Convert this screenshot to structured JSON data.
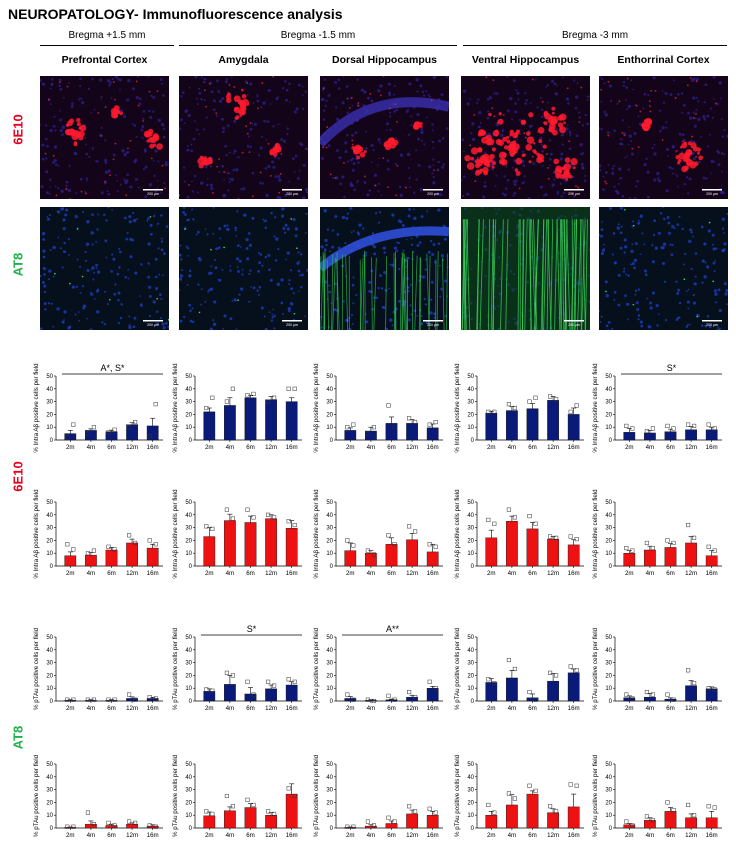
{
  "title": "NEUROPATOLOGY- Immunofluorescence analysis",
  "bregmas": [
    "Bregma +1.5 mm",
    "Bregma -1.5 mm",
    "Bregma -3 mm"
  ],
  "regions": [
    "Prefrontal Cortex",
    "Amygdala",
    "Dorsal Hippocampus",
    "Ventral Hippocampus",
    "Enthorrinal Cortex"
  ],
  "row_labels": {
    "e10": "6E10",
    "at8": "AT8"
  },
  "colors": {
    "e10": "#e8001c",
    "at8": "#1fb24a",
    "navy": "#0a1a78",
    "red": "#ee1111"
  },
  "micro_scale_label": "200 µm",
  "chart_data": [
    {
      "id": "c00",
      "type": "bar",
      "ylabel": "% Intra Aβ positive cells per field",
      "categories": [
        "2m",
        "4m",
        "6m",
        "12m",
        "16m"
      ],
      "ylim": [
        0,
        50
      ],
      "yticks": [
        0,
        10,
        20,
        30,
        40,
        50
      ],
      "color": "navy",
      "values": [
        5,
        7.5,
        6.5,
        12,
        11
      ],
      "errors": [
        2.5,
        1.2,
        1.2,
        1.5,
        6
      ],
      "points": [
        [
          2,
          12
        ],
        [
          5,
          10
        ],
        [
          6,
          8
        ],
        [
          10,
          14
        ],
        [
          3,
          28
        ]
      ],
      "annotation": "A*, S*"
    },
    {
      "id": "c01",
      "type": "bar",
      "ylabel": "% Intra Aβ positive cells per field",
      "categories": [
        "2m",
        "4m",
        "6m",
        "12m",
        "16m"
      ],
      "ylim": [
        0,
        50
      ],
      "yticks": [
        0,
        10,
        20,
        30,
        40,
        50
      ],
      "color": "navy",
      "values": [
        22,
        27,
        33,
        31.5,
        30
      ],
      "errors": [
        3,
        6,
        2,
        2.5,
        3
      ],
      "points": [
        [
          25,
          33
        ],
        [
          30,
          40
        ],
        [
          35,
          36
        ],
        [
          30,
          33
        ],
        [
          40,
          40
        ]
      ],
      "annotation": ""
    },
    {
      "id": "c02",
      "type": "bar",
      "ylabel": "% Intra Aβ positive cells per field",
      "categories": [
        "2m",
        "4m",
        "6m",
        "12m",
        "16m"
      ],
      "ylim": [
        0,
        50
      ],
      "yticks": [
        0,
        10,
        20,
        30,
        40,
        50
      ],
      "color": "navy",
      "values": [
        7.5,
        7,
        13,
        13,
        9.5
      ],
      "errors": [
        2,
        3,
        5,
        3,
        3
      ],
      "points": [
        [
          10,
          12
        ],
        [
          5,
          10
        ],
        [
          27,
          10
        ],
        [
          17,
          14
        ],
        [
          12,
          14
        ]
      ],
      "annotation": ""
    },
    {
      "id": "c03",
      "type": "bar",
      "ylabel": "% Intra Aβ positive cells per field",
      "categories": [
        "2m",
        "4m",
        "6m",
        "12m",
        "16m"
      ],
      "ylim": [
        0,
        50
      ],
      "yticks": [
        0,
        10,
        20,
        30,
        40,
        50
      ],
      "color": "navy",
      "values": [
        21,
        23,
        24.5,
        31,
        20
      ],
      "errors": [
        1.5,
        3,
        4,
        3,
        5
      ],
      "points": [
        [
          22,
          22
        ],
        [
          28,
          25
        ],
        [
          30,
          33
        ],
        [
          34,
          32
        ],
        [
          22,
          27
        ]
      ],
      "annotation": ""
    },
    {
      "id": "c04",
      "type": "bar",
      "ylabel": "% Intra Aβ positive cells per field",
      "categories": [
        "2m",
        "4m",
        "6m",
        "12m",
        "16m"
      ],
      "ylim": [
        0,
        50
      ],
      "yticks": [
        0,
        10,
        20,
        30,
        40,
        50
      ],
      "color": "navy",
      "values": [
        6,
        5.5,
        6.5,
        8,
        8
      ],
      "errors": [
        3,
        2,
        2,
        2.5,
        2
      ],
      "points": [
        [
          11,
          9
        ],
        [
          7,
          9
        ],
        [
          11,
          9
        ],
        [
          12,
          11
        ],
        [
          12,
          9
        ]
      ],
      "annotation": "S*"
    },
    {
      "id": "c10",
      "type": "bar",
      "ylabel": "% Intra Aβ positive cells per field",
      "categories": [
        "2m",
        "4m",
        "6m",
        "12m",
        "16m"
      ],
      "ylim": [
        0,
        50
      ],
      "yticks": [
        0,
        10,
        20,
        30,
        40,
        50
      ],
      "color": "red",
      "values": [
        8,
        8.5,
        12.5,
        18,
        14
      ],
      "errors": [
        3,
        2,
        2,
        3,
        3
      ],
      "points": [
        [
          17,
          13
        ],
        [
          10,
          12
        ],
        [
          15,
          13
        ],
        [
          24,
          18
        ],
        [
          20,
          17
        ]
      ],
      "annotation": ""
    },
    {
      "id": "c11",
      "type": "bar",
      "ylabel": "% Intra Aβ positive cells per field",
      "categories": [
        "2m",
        "4m",
        "6m",
        "12m",
        "16m"
      ],
      "ylim": [
        0,
        50
      ],
      "yticks": [
        0,
        10,
        20,
        30,
        40,
        50
      ],
      "color": "red",
      "values": [
        23,
        35.5,
        34,
        37,
        29.5
      ],
      "errors": [
        7,
        5,
        5,
        3,
        6
      ],
      "points": [
        [
          31,
          29
        ],
        [
          44,
          37
        ],
        [
          44,
          38
        ],
        [
          40,
          38
        ],
        [
          35,
          32
        ]
      ],
      "annotation": ""
    },
    {
      "id": "c12",
      "type": "bar",
      "ylabel": "% Intra Aβ positive cells per field",
      "categories": [
        "2m",
        "4m",
        "6m",
        "12m",
        "16m"
      ],
      "ylim": [
        0,
        50
      ],
      "yticks": [
        0,
        10,
        20,
        30,
        40,
        50
      ],
      "color": "red",
      "values": [
        12,
        10,
        17,
        20.5,
        11
      ],
      "errors": [
        6,
        2,
        5,
        5,
        6
      ],
      "points": [
        [
          20,
          16
        ],
        [
          12,
          9
        ],
        [
          24,
          17
        ],
        [
          31,
          27
        ],
        [
          17,
          15
        ]
      ],
      "annotation": ""
    },
    {
      "id": "c13",
      "type": "bar",
      "ylabel": "% Intra Aβ positive cells per field",
      "categories": [
        "2m",
        "4m",
        "6m",
        "12m",
        "16m"
      ],
      "ylim": [
        0,
        50
      ],
      "yticks": [
        0,
        10,
        20,
        30,
        40,
        50
      ],
      "color": "red",
      "values": [
        22,
        35,
        29,
        21,
        16.5
      ],
      "errors": [
        6,
        4,
        5,
        2,
        4
      ],
      "points": [
        [
          36,
          33
        ],
        [
          44,
          38
        ],
        [
          39,
          33
        ],
        [
          23,
          22
        ],
        [
          23,
          21
        ]
      ],
      "annotation": ""
    },
    {
      "id": "c14",
      "type": "bar",
      "ylabel": "% Intra Aβ positive cells per field",
      "categories": [
        "2m",
        "4m",
        "6m",
        "12m",
        "16m"
      ],
      "ylim": [
        0,
        50
      ],
      "yticks": [
        0,
        10,
        20,
        30,
        40,
        50
      ],
      "color": "red",
      "values": [
        10,
        12.5,
        14.5,
        18,
        8
      ],
      "errors": [
        2,
        3,
        3,
        5,
        4
      ],
      "points": [
        [
          14,
          12
        ],
        [
          18,
          14
        ],
        [
          20,
          18
        ],
        [
          32,
          22
        ],
        [
          15,
          12
        ]
      ],
      "annotation": ""
    },
    {
      "id": "c20",
      "type": "bar",
      "ylabel": "% pTAu positive cells per field",
      "categories": [
        "2m",
        "4m",
        "6m",
        "12m",
        "16m"
      ],
      "ylim": [
        0,
        50
      ],
      "yticks": [
        0,
        10,
        20,
        30,
        40,
        50
      ],
      "color": "navy",
      "values": [
        0.5,
        0.5,
        0.5,
        2,
        2
      ],
      "errors": [
        0.5,
        0.5,
        0.5,
        1.2,
        0.8
      ],
      "points": [
        [
          1,
          1
        ],
        [
          1,
          1
        ],
        [
          1,
          1
        ],
        [
          5,
          1
        ],
        [
          3,
          2
        ]
      ],
      "annotation": ""
    },
    {
      "id": "c21",
      "type": "bar",
      "ylabel": "% pTAu positive cells per field",
      "categories": [
        "2m",
        "4m",
        "6m",
        "12m",
        "16m"
      ],
      "ylim": [
        0,
        50
      ],
      "yticks": [
        0,
        10,
        20,
        30,
        40,
        50
      ],
      "color": "navy",
      "values": [
        7.5,
        13,
        5.5,
        9.5,
        12.5
      ],
      "errors": [
        2,
        7,
        5,
        3,
        2.5
      ],
      "points": [
        [
          9,
          8
        ],
        [
          22,
          20
        ],
        [
          15,
          5
        ],
        [
          15,
          12
        ],
        [
          17,
          15
        ]
      ],
      "annotation": "S*"
    },
    {
      "id": "c22",
      "type": "bar",
      "ylabel": "% pTAu positive cells per field",
      "categories": [
        "2m",
        "4m",
        "6m",
        "12m",
        "16m"
      ],
      "ylim": [
        0,
        50
      ],
      "yticks": [
        0,
        10,
        20,
        30,
        40,
        50
      ],
      "color": "navy",
      "values": [
        2,
        0.5,
        1,
        3,
        10
      ],
      "errors": [
        1.5,
        0.5,
        0.5,
        1.5,
        1.5
      ],
      "points": [
        [
          5,
          1
        ],
        [
          1,
          0
        ],
        [
          4,
          1
        ],
        [
          7,
          3
        ],
        [
          15,
          10
        ]
      ],
      "annotation": "A**"
    },
    {
      "id": "c23",
      "type": "bar",
      "ylabel": "% pTAu positive cells per field",
      "categories": [
        "2m",
        "4m",
        "6m",
        "12m",
        "16m"
      ],
      "ylim": [
        0,
        50
      ],
      "yticks": [
        0,
        10,
        20,
        30,
        40,
        50
      ],
      "color": "navy",
      "values": [
        14.5,
        18,
        2.5,
        15.5,
        22
      ],
      "errors": [
        3,
        6,
        3,
        6,
        3
      ],
      "points": [
        [
          17,
          14
        ],
        [
          32,
          25
        ],
        [
          7,
          1
        ],
        [
          22,
          20
        ],
        [
          27,
          24
        ]
      ],
      "annotation": ""
    },
    {
      "id": "c24",
      "type": "bar",
      "ylabel": "% pTAu positive cells per field",
      "categories": [
        "2m",
        "4m",
        "6m",
        "12m",
        "16m"
      ],
      "ylim": [
        0,
        50
      ],
      "yticks": [
        0,
        10,
        20,
        30,
        40,
        50
      ],
      "color": "navy",
      "values": [
        2.5,
        3,
        1.5,
        12,
        9.5
      ],
      "errors": [
        1.5,
        3,
        1,
        4,
        1.5
      ],
      "points": [
        [
          5,
          2
        ],
        [
          7,
          5
        ],
        [
          5,
          1
        ],
        [
          24,
          14
        ],
        [
          10,
          9
        ]
      ],
      "annotation": ""
    },
    {
      "id": "c30",
      "type": "bar",
      "ylabel": "% pTAu positive cells per field",
      "categories": [
        "2m",
        "4m",
        "6m",
        "12m",
        "16m"
      ],
      "ylim": [
        0,
        50
      ],
      "yticks": [
        0,
        10,
        20,
        30,
        40,
        50
      ],
      "color": "red",
      "values": [
        0.5,
        3,
        2,
        3,
        1.5
      ],
      "errors": [
        0.3,
        2.5,
        1,
        1,
        1
      ],
      "points": [
        [
          1,
          1
        ],
        [
          12,
          3
        ],
        [
          4,
          2
        ],
        [
          5,
          4
        ],
        [
          2,
          1
        ]
      ],
      "annotation": ""
    },
    {
      "id": "c31",
      "type": "bar",
      "ylabel": "% pTAu positive cells per field",
      "categories": [
        "2m",
        "4m",
        "6m",
        "12m",
        "16m"
      ],
      "ylim": [
        0,
        50
      ],
      "yticks": [
        0,
        10,
        20,
        30,
        40,
        50
      ],
      "color": "red",
      "values": [
        9.5,
        13.5,
        16,
        10,
        26.5
      ],
      "errors": [
        3,
        3,
        3,
        2,
        8
      ],
      "points": [
        [
          13,
          11
        ],
        [
          25,
          17
        ],
        [
          22,
          18
        ],
        [
          13,
          11
        ],
        [
          31,
          25
        ]
      ],
      "annotation": ""
    },
    {
      "id": "c32",
      "type": "bar",
      "ylabel": "% pTAu positive cells per field",
      "categories": [
        "2m",
        "4m",
        "6m",
        "12m",
        "16m"
      ],
      "ylim": [
        0,
        50
      ],
      "yticks": [
        0,
        10,
        20,
        30,
        40,
        50
      ],
      "color": "red",
      "values": [
        0.5,
        1.5,
        3.5,
        11,
        10
      ],
      "errors": [
        0.3,
        1,
        2,
        3,
        3
      ],
      "points": [
        [
          1,
          1
        ],
        [
          5,
          2
        ],
        [
          8,
          5
        ],
        [
          17,
          13
        ],
        [
          15,
          12
        ]
      ],
      "annotation": ""
    },
    {
      "id": "c33",
      "type": "bar",
      "ylabel": "% pTAu positive cells per field",
      "categories": [
        "2m",
        "4m",
        "6m",
        "12m",
        "16m"
      ],
      "ylim": [
        0,
        50
      ],
      "yticks": [
        0,
        10,
        20,
        30,
        40,
        50
      ],
      "color": "red",
      "values": [
        10,
        18,
        26.5,
        12,
        16.5
      ],
      "errors": [
        3,
        8,
        2.5,
        3,
        10
      ],
      "points": [
        [
          18,
          12
        ],
        [
          27,
          23
        ],
        [
          33,
          29
        ],
        [
          17,
          13
        ],
        [
          34,
          33
        ]
      ],
      "annotation": ""
    },
    {
      "id": "c34",
      "type": "bar",
      "ylabel": "% pTAu positive cells per field",
      "categories": [
        "2m",
        "4m",
        "6m",
        "12m",
        "16m"
      ],
      "ylim": [
        0,
        50
      ],
      "yticks": [
        0,
        10,
        20,
        30,
        40,
        50
      ],
      "color": "red",
      "values": [
        2.5,
        6,
        13,
        8,
        8
      ],
      "errors": [
        1,
        2,
        3,
        3,
        5
      ],
      "points": [
        [
          5,
          2
        ],
        [
          9,
          6
        ],
        [
          20,
          14
        ],
        [
          18,
          10
        ],
        [
          17,
          16
        ]
      ],
      "annotation": ""
    }
  ]
}
